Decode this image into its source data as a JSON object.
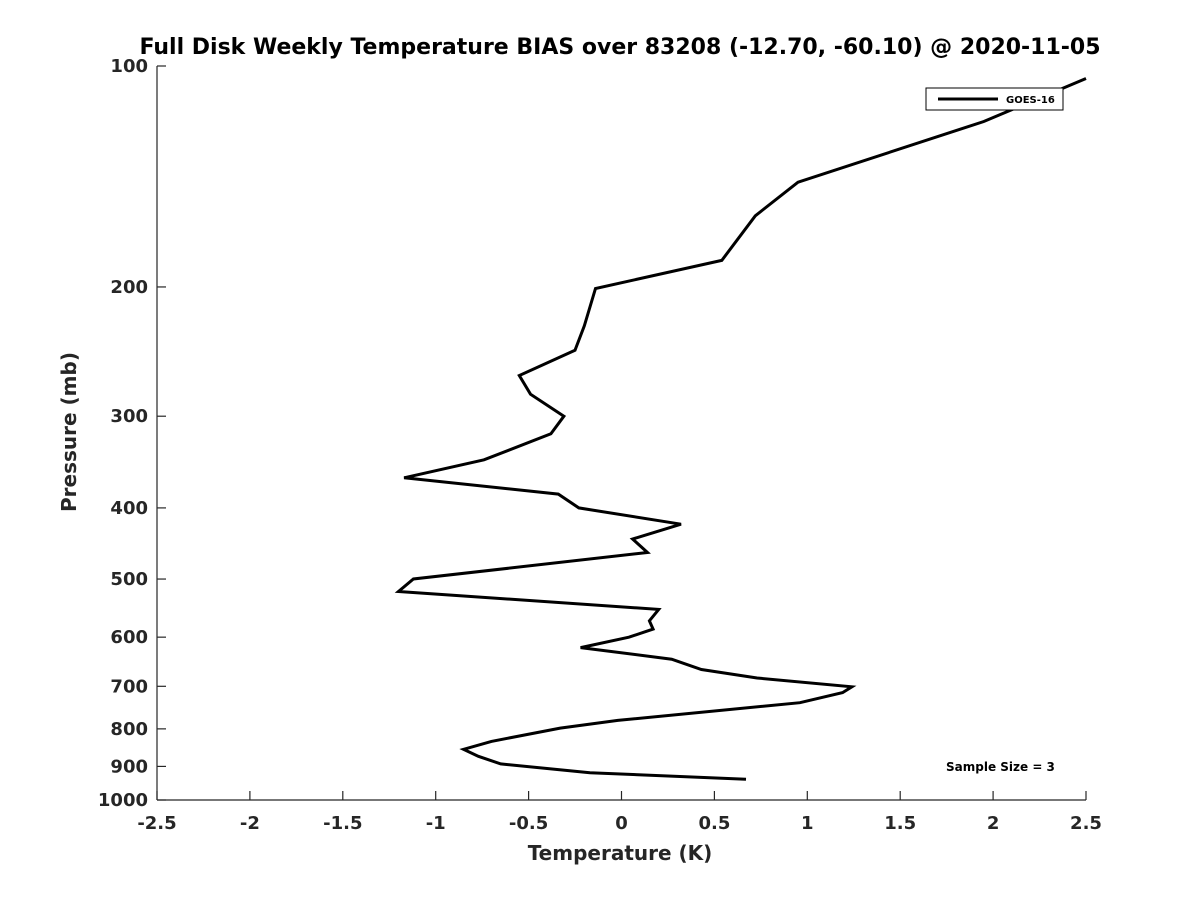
{
  "chart_data": {
    "type": "line",
    "title": "Full Disk Weekly Temperature BIAS over 83208 (-12.70, -60.10) @ 2020-11-05",
    "xlabel": "Temperature (K)",
    "ylabel": "Pressure (mb)",
    "xlim": [
      -2.5,
      2.5
    ],
    "ylim": [
      100,
      1000
    ],
    "y_scale": "log",
    "y_reversed": true,
    "grid": false,
    "x_ticks": [
      -2.5,
      -2,
      -1.5,
      -1,
      -0.5,
      0,
      0.5,
      1,
      1.5,
      2,
      2.5
    ],
    "x_tick_labels": [
      "-2.5",
      "-2",
      "-1.5",
      "-1",
      "-0.5",
      "0",
      "0.5",
      "1",
      "1.5",
      "2",
      "2.5"
    ],
    "y_ticks": [
      100,
      200,
      300,
      400,
      500,
      600,
      700,
      800,
      900,
      1000
    ],
    "y_tick_labels": [
      "100",
      "200",
      "300",
      "400",
      "500",
      "600",
      "700",
      "800",
      "900",
      "1000"
    ],
    "legend_position": "top-right",
    "series": [
      {
        "name": "GOES-16",
        "color": "#000000",
        "points": [
          {
            "x": 2.5,
            "y": 104
          },
          {
            "x": 1.95,
            "y": 119
          },
          {
            "x": 0.95,
            "y": 144
          },
          {
            "x": 0.72,
            "y": 160
          },
          {
            "x": 0.54,
            "y": 184
          },
          {
            "x": -0.14,
            "y": 201
          },
          {
            "x": -0.2,
            "y": 226
          },
          {
            "x": -0.25,
            "y": 244
          },
          {
            "x": -0.55,
            "y": 264
          },
          {
            "x": -0.49,
            "y": 280
          },
          {
            "x": -0.31,
            "y": 300
          },
          {
            "x": -0.38,
            "y": 317
          },
          {
            "x": -0.74,
            "y": 344
          },
          {
            "x": -1.17,
            "y": 364
          },
          {
            "x": -0.34,
            "y": 383
          },
          {
            "x": -0.23,
            "y": 400
          },
          {
            "x": 0.32,
            "y": 421
          },
          {
            "x": 0.06,
            "y": 441
          },
          {
            "x": 0.14,
            "y": 460
          },
          {
            "x": -1.12,
            "y": 500
          },
          {
            "x": -1.2,
            "y": 520
          },
          {
            "x": 0.2,
            "y": 550
          },
          {
            "x": 0.15,
            "y": 570
          },
          {
            "x": 0.17,
            "y": 585
          },
          {
            "x": 0.04,
            "y": 600
          },
          {
            "x": -0.22,
            "y": 620
          },
          {
            "x": 0.27,
            "y": 643
          },
          {
            "x": 0.43,
            "y": 664
          },
          {
            "x": 0.73,
            "y": 682
          },
          {
            "x": 1.24,
            "y": 701
          },
          {
            "x": 1.19,
            "y": 714
          },
          {
            "x": 0.96,
            "y": 737
          },
          {
            "x": -0.02,
            "y": 779
          },
          {
            "x": -0.33,
            "y": 798
          },
          {
            "x": -0.7,
            "y": 832
          },
          {
            "x": -0.85,
            "y": 853
          },
          {
            "x": -0.77,
            "y": 872
          },
          {
            "x": -0.65,
            "y": 893
          },
          {
            "x": -0.17,
            "y": 918
          },
          {
            "x": 0.67,
            "y": 937
          }
        ]
      }
    ],
    "annotations": [
      "Sample Size = 3"
    ]
  }
}
